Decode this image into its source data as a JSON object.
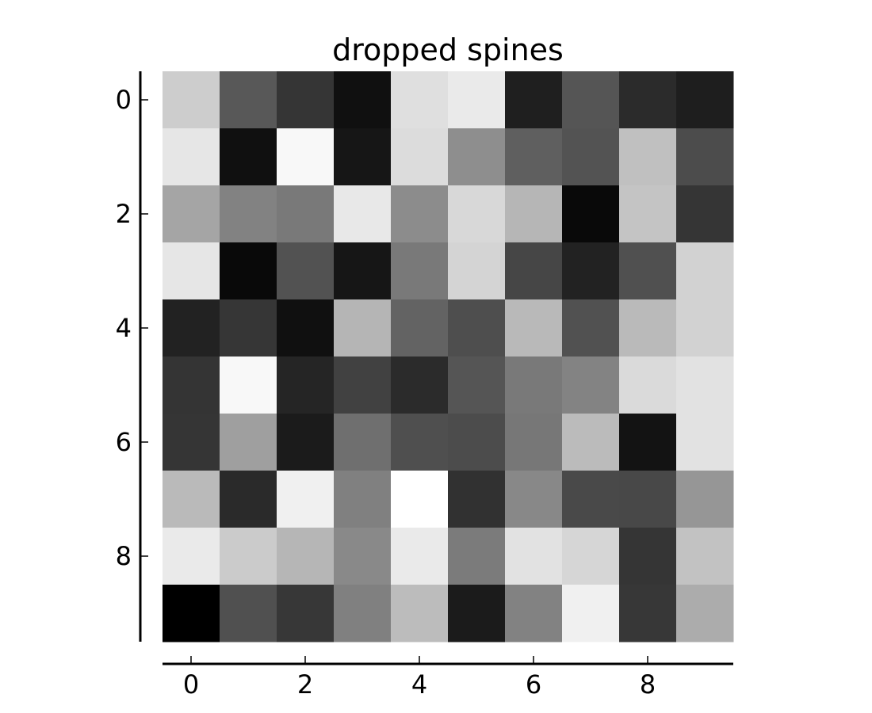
{
  "chart_data": {
    "type": "heatmap",
    "title": "dropped spines",
    "xlabel": "",
    "ylabel": "",
    "colormap": "gray",
    "value_range": [
      0,
      255
    ],
    "x_ticks": [
      0,
      2,
      4,
      6,
      8
    ],
    "y_ticks": [
      0,
      2,
      4,
      6,
      8
    ],
    "x_tick_labels": [
      "0",
      "2",
      "4",
      "6",
      "8"
    ],
    "y_tick_labels": [
      "0",
      "2",
      "4",
      "6",
      "8"
    ],
    "xlim": [
      -0.5,
      9.5
    ],
    "ylim": [
      9.5,
      -0.5
    ],
    "y_axis_inverted": true,
    "spines": {
      "left": "dropped",
      "bottom": "dropped",
      "top": "hidden",
      "right": "hidden"
    },
    "grid": false,
    "values": [
      [
        205,
        88,
        53,
        16,
        223,
        234,
        31,
        85,
        43,
        30
      ],
      [
        230,
        16,
        248,
        22,
        220,
        142,
        95,
        83,
        192,
        76
      ],
      [
        165,
        130,
        121,
        232,
        140,
        216,
        182,
        9,
        196,
        53
      ],
      [
        230,
        9,
        82,
        22,
        121,
        212,
        70,
        34,
        80,
        210
      ],
      [
        34,
        54,
        16,
        181,
        99,
        78,
        185,
        81,
        186,
        210
      ],
      [
        52,
        248,
        37,
        65,
        43,
        85,
        121,
        131,
        218,
        226
      ],
      [
        53,
        159,
        27,
        111,
        79,
        76,
        119,
        187,
        19,
        226
      ],
      [
        186,
        42,
        240,
        128,
        255,
        49,
        136,
        73,
        72,
        150
      ],
      [
        234,
        203,
        182,
        137,
        234,
        123,
        226,
        214,
        53,
        194
      ],
      [
        0,
        80,
        55,
        128,
        188,
        27,
        130,
        240,
        55,
        172
      ]
    ]
  }
}
